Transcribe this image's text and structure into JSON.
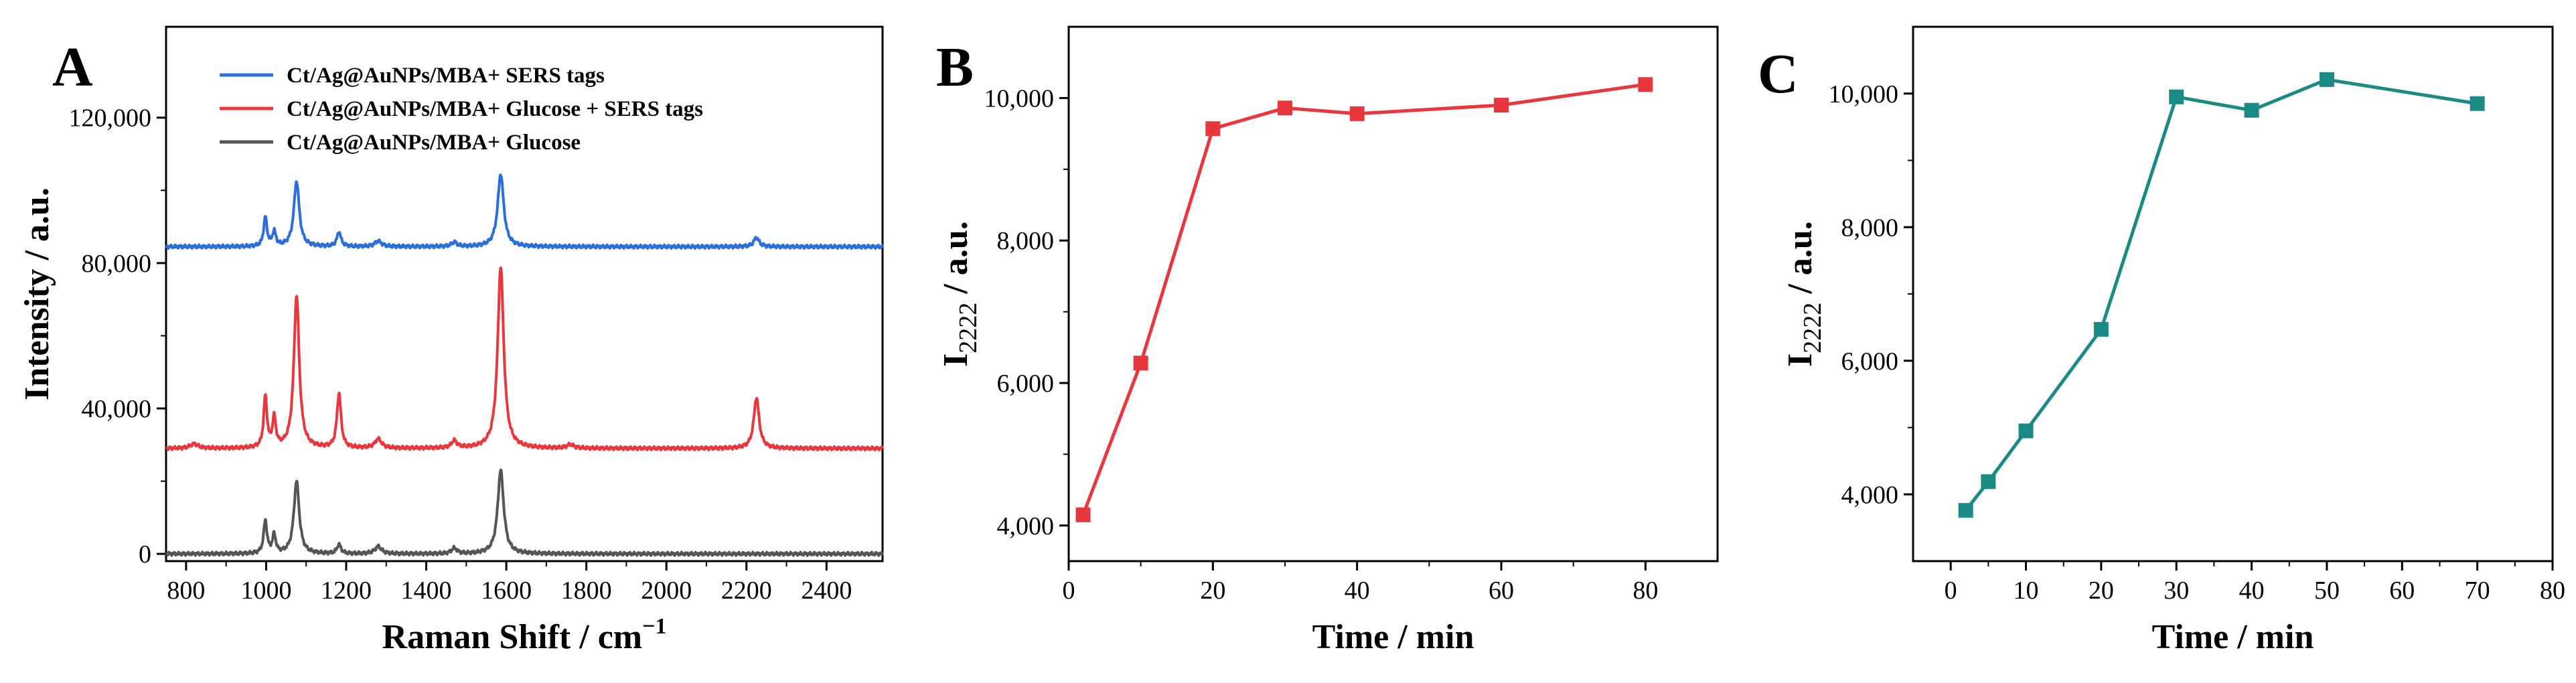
{
  "chart_data": [
    {
      "panel": "A",
      "type": "line",
      "xlabel": "Raman Shift / cm",
      "xlabel_sup": "−1",
      "ylabel": "Intensity / a.u.",
      "xlim": [
        750,
        2540
      ],
      "ylim": [
        -2000,
        145000
      ],
      "xticks": [
        800,
        1000,
        1200,
        1400,
        1600,
        1800,
        2000,
        2200,
        2400
      ],
      "xtick_labels": [
        "800",
        "1000",
        "1200",
        "1400",
        "1600",
        "1800",
        "2000",
        "2200",
        "2400"
      ],
      "yticks": [
        0,
        40000,
        80000,
        120000
      ],
      "ytick_labels": [
        "0",
        "40,000",
        "80,000",
        "120,000"
      ],
      "legend_position": "top",
      "grid": false,
      "series": [
        {
          "name": "Ct/Ag@AuNPs/MBA+ SERS tags",
          "color": "#2a6fdb",
          "baseline": 84500,
          "peaks": [
            [
              998,
              8000,
              5
            ],
            [
              1020,
              4000,
              5
            ],
            [
              1076,
              18000,
              8
            ],
            [
              1182,
              4000,
              6
            ],
            [
              1280,
              1500,
              10
            ],
            [
              1470,
              1200,
              8
            ],
            [
              1586,
              20000,
              9
            ],
            [
              2225,
              2500,
              8
            ]
          ]
        },
        {
          "name": "Ct/Ag@AuNPs/MBA+ Glucose + SERS tags",
          "color": "#e8383d",
          "baseline": 29000,
          "peaks": [
            [
              820,
              1200,
              12
            ],
            [
              998,
              14000,
              5
            ],
            [
              1020,
              8000,
              5
            ],
            [
              1076,
              42000,
              8
            ],
            [
              1182,
              15000,
              6
            ],
            [
              1280,
              2500,
              10
            ],
            [
              1470,
              2000,
              8
            ],
            [
              1586,
              50000,
              9
            ],
            [
              1760,
              1000,
              10
            ],
            [
              2225,
              14000,
              8
            ]
          ]
        },
        {
          "name": "Ct/Ag@AuNPs/MBA+ Glucose",
          "color": "#555555",
          "baseline": 0,
          "peaks": [
            [
              998,
              9000,
              5
            ],
            [
              1020,
              5000,
              5
            ],
            [
              1076,
              20000,
              8
            ],
            [
              1182,
              2500,
              6
            ],
            [
              1280,
              2000,
              10
            ],
            [
              1470,
              1500,
              8
            ],
            [
              1586,
              23000,
              9
            ]
          ]
        }
      ]
    },
    {
      "panel": "B",
      "type": "line",
      "xlabel": "Time / min",
      "ylabel_main": "I",
      "ylabel_sub": "2222",
      "ylabel_rest": " / a.u.",
      "xlim": [
        0,
        90
      ],
      "ylim": [
        3500,
        11000
      ],
      "xticks": [
        0,
        20,
        40,
        60,
        80
      ],
      "xtick_labels": [
        "0",
        "20",
        "40",
        "60",
        "80"
      ],
      "yticks": [
        4000,
        6000,
        8000,
        10000
      ],
      "ytick_labels": [
        "4,000",
        "6,000",
        "8,000",
        "10,000"
      ],
      "grid": false,
      "series": [
        {
          "color": "#e8383d",
          "marker": "square",
          "x": [
            2,
            10,
            20,
            30,
            40,
            60,
            80
          ],
          "y": [
            4150,
            6280,
            9570,
            9860,
            9780,
            9900,
            10190
          ]
        }
      ]
    },
    {
      "panel": "C",
      "type": "line",
      "xlabel": "Time / min",
      "ylabel_main": "I",
      "ylabel_sub": "2222",
      "ylabel_rest": " / a.u.",
      "xlim": [
        -5,
        80
      ],
      "ylim": [
        3000,
        11000
      ],
      "xticks": [
        0,
        10,
        20,
        30,
        40,
        50,
        60,
        70,
        80
      ],
      "xtick_labels": [
        "0",
        "10",
        "20",
        "30",
        "40",
        "50",
        "60",
        "70",
        "80"
      ],
      "yticks": [
        4000,
        6000,
        8000,
        10000
      ],
      "ytick_labels": [
        "4,000",
        "6,000",
        "8,000",
        "10,000"
      ],
      "grid": false,
      "series": [
        {
          "color": "#1a8a84",
          "marker": "square",
          "x": [
            2,
            5,
            10,
            20,
            30,
            40,
            50,
            70
          ],
          "y": [
            3760,
            4190,
            4950,
            6470,
            9950,
            9750,
            10210,
            9850
          ]
        }
      ]
    }
  ]
}
